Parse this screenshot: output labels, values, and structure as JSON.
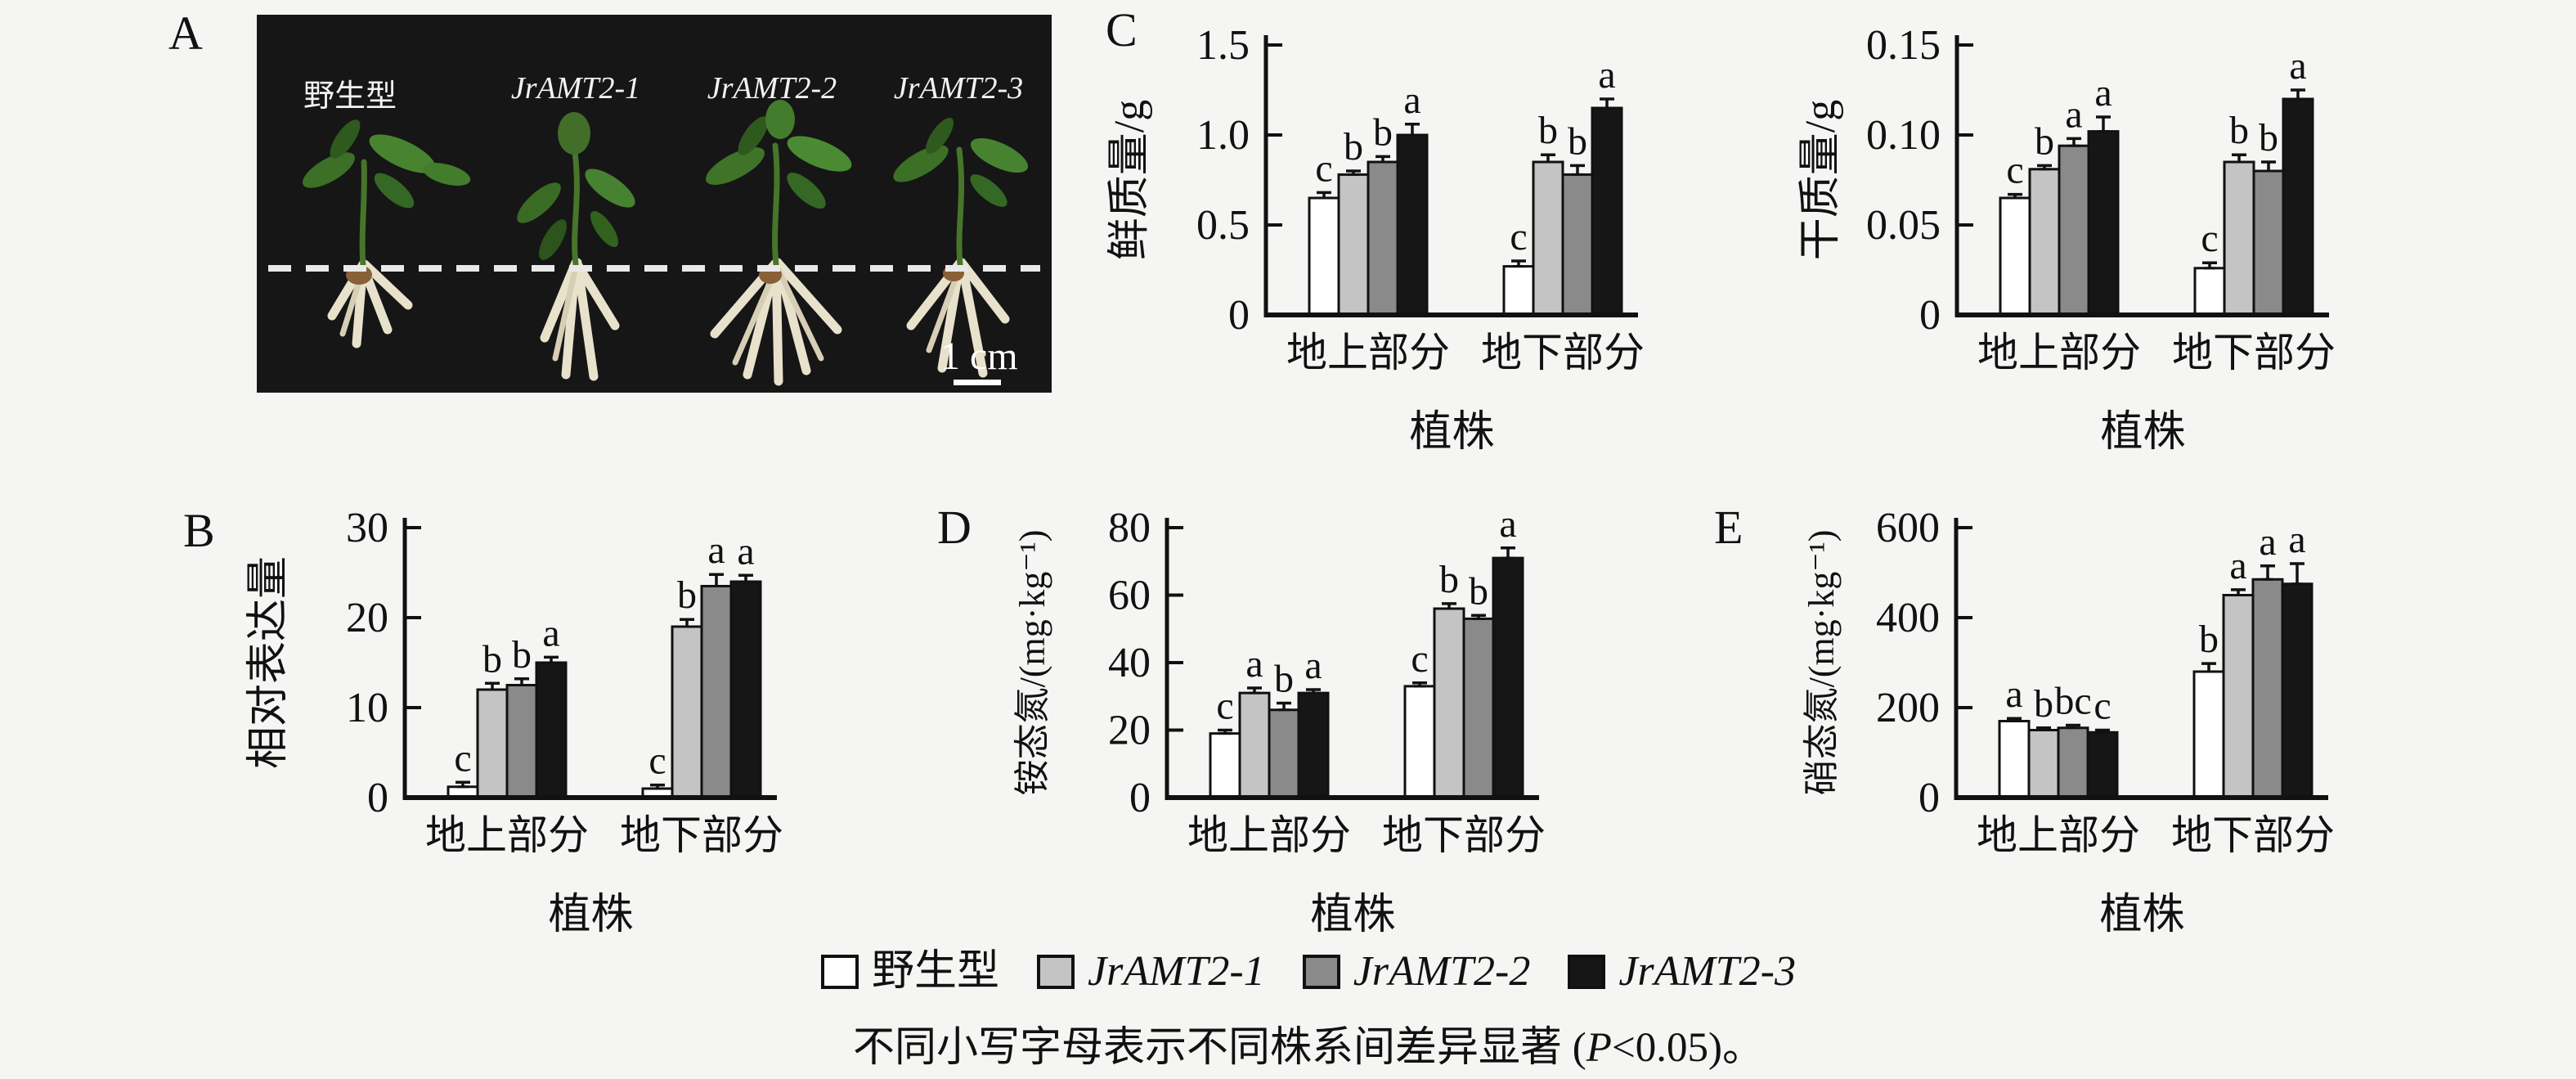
{
  "figure": {
    "background": "#f5f5f4",
    "panel_labels": {
      "a": "A",
      "b": "B",
      "c": "C",
      "d": "D",
      "e": "E"
    }
  },
  "panel_a": {
    "plant_labels": [
      {
        "text": "野生型",
        "italic": false
      },
      {
        "text": "JrAMT2-1",
        "italic": true
      },
      {
        "text": "JrAMT2-2",
        "italic": true
      },
      {
        "text": "JrAMT2-3",
        "italic": true
      }
    ],
    "scale_bar_label": "1 cm"
  },
  "series_colors": [
    "#ffffff",
    "#c4c4c4",
    "#8a8a8a",
    "#161616"
  ],
  "legend": {
    "items": [
      {
        "label": "野生型",
        "italic": false
      },
      {
        "label": "JrAMT2-1",
        "italic": true
      },
      {
        "label": "JrAMT2-2",
        "italic": true
      },
      {
        "label": "JrAMT2-3",
        "italic": true
      }
    ]
  },
  "footnote": {
    "prefix": "不同小写字母表示不同株系间差异显著 (",
    "italic_part": "P",
    "suffix": "<0.05)。"
  },
  "chart_data": [
    {
      "panel": "B",
      "type": "bar",
      "title": "",
      "ylabel": "相对表达量",
      "xlabel": "植株",
      "categories": [
        "地上部分",
        "地下部分"
      ],
      "ylim": [
        0,
        30
      ],
      "yticks": [
        0,
        10,
        20,
        30
      ],
      "ytick_labels": [
        "0",
        "10",
        "20",
        "30"
      ],
      "grid": false,
      "legend_position": "shared-bottom",
      "series": [
        {
          "name": "野生型",
          "values": [
            1.2,
            1.0
          ],
          "errors": [
            0.5,
            0.4
          ],
          "letters": [
            "c",
            "c"
          ]
        },
        {
          "name": "JrAMT2-1",
          "values": [
            12.0,
            19.0
          ],
          "errors": [
            0.7,
            0.8
          ],
          "letters": [
            "b",
            "b"
          ]
        },
        {
          "name": "JrAMT2-2",
          "values": [
            12.5,
            23.5
          ],
          "errors": [
            0.7,
            1.3
          ],
          "letters": [
            "b",
            "a"
          ]
        },
        {
          "name": "JrAMT2-3",
          "values": [
            15.0,
            24.0
          ],
          "errors": [
            0.6,
            0.7
          ],
          "letters": [
            "a",
            "a"
          ]
        }
      ]
    },
    {
      "panel": "C",
      "type": "bar",
      "title": "",
      "ylabel": "鲜质量/g",
      "xlabel": "植株",
      "categories": [
        "地上部分",
        "地下部分"
      ],
      "ylim": [
        0,
        1.5
      ],
      "yticks": [
        0,
        0.5,
        1.0,
        1.5
      ],
      "ytick_labels": [
        "0",
        "0.5",
        "1.0",
        "1.5"
      ],
      "grid": false,
      "legend_position": "shared-bottom",
      "series": [
        {
          "name": "野生型",
          "values": [
            0.65,
            0.27
          ],
          "errors": [
            0.03,
            0.03
          ],
          "letters": [
            "c",
            "c"
          ]
        },
        {
          "name": "JrAMT2-1",
          "values": [
            0.78,
            0.85
          ],
          "errors": [
            0.02,
            0.04
          ],
          "letters": [
            "b",
            "b"
          ]
        },
        {
          "name": "JrAMT2-2",
          "values": [
            0.85,
            0.78
          ],
          "errors": [
            0.03,
            0.05
          ],
          "letters": [
            "b",
            "b"
          ]
        },
        {
          "name": "JrAMT2-3",
          "values": [
            1.0,
            1.15
          ],
          "errors": [
            0.06,
            0.05
          ],
          "letters": [
            "a",
            "a"
          ]
        }
      ]
    },
    {
      "panel": "C",
      "type": "bar",
      "title": "",
      "ylabel": "干质量/g",
      "xlabel": "植株",
      "categories": [
        "地上部分",
        "地下部分"
      ],
      "ylim": [
        0,
        0.15
      ],
      "yticks": [
        0,
        0.05,
        0.1,
        0.15
      ],
      "ytick_labels": [
        "0",
        "0.05",
        "0.10",
        "0.15"
      ],
      "grid": false,
      "legend_position": "shared-bottom",
      "series": [
        {
          "name": "野生型",
          "values": [
            0.065,
            0.026
          ],
          "errors": [
            0.002,
            0.003
          ],
          "letters": [
            "c",
            "c"
          ]
        },
        {
          "name": "JrAMT2-1",
          "values": [
            0.081,
            0.085
          ],
          "errors": [
            0.002,
            0.004
          ],
          "letters": [
            "b",
            "b"
          ]
        },
        {
          "name": "JrAMT2-2",
          "values": [
            0.094,
            0.08
          ],
          "errors": [
            0.004,
            0.005
          ],
          "letters": [
            "a",
            "b"
          ]
        },
        {
          "name": "JrAMT2-3",
          "values": [
            0.102,
            0.12
          ],
          "errors": [
            0.008,
            0.005
          ],
          "letters": [
            "a",
            "a"
          ]
        }
      ]
    },
    {
      "panel": "D",
      "type": "bar",
      "title": "",
      "ylabel": "铵态氮/(mg·kg⁻¹)",
      "xlabel": "植株",
      "categories": [
        "地上部分",
        "地下部分"
      ],
      "ylim": [
        0,
        80
      ],
      "yticks": [
        0,
        20,
        40,
        60,
        80
      ],
      "ytick_labels": [
        "0",
        "20",
        "40",
        "60",
        "80"
      ],
      "grid": false,
      "legend_position": "shared-bottom",
      "series": [
        {
          "name": "野生型",
          "values": [
            19,
            33
          ],
          "errors": [
            1.0,
            1.0
          ],
          "letters": [
            "c",
            "c"
          ]
        },
        {
          "name": "JrAMT2-1",
          "values": [
            31,
            56
          ],
          "errors": [
            1.5,
            1.5
          ],
          "letters": [
            "a",
            "b"
          ]
        },
        {
          "name": "JrAMT2-2",
          "values": [
            26,
            53
          ],
          "errors": [
            2.0,
            1.0
          ],
          "letters": [
            "b",
            "b"
          ]
        },
        {
          "name": "JrAMT2-3",
          "values": [
            31,
            71
          ],
          "errors": [
            1.0,
            3.0
          ],
          "letters": [
            "a",
            "a"
          ]
        }
      ]
    },
    {
      "panel": "E",
      "type": "bar",
      "title": "",
      "ylabel": "硝态氮/(mg·kg⁻¹)",
      "xlabel": "植株",
      "categories": [
        "地上部分",
        "地下部分"
      ],
      "ylim": [
        0,
        600
      ],
      "yticks": [
        0,
        200,
        400,
        600
      ],
      "ytick_labels": [
        "0",
        "200",
        "400",
        "600"
      ],
      "grid": false,
      "legend_position": "shared-bottom",
      "series": [
        {
          "name": "野生型",
          "values": [
            170,
            280
          ],
          "errors": [
            6,
            18
          ],
          "letters": [
            "a",
            "b"
          ]
        },
        {
          "name": "JrAMT2-1",
          "values": [
            150,
            450
          ],
          "errors": [
            5,
            12
          ],
          "letters": [
            "b",
            "a"
          ]
        },
        {
          "name": "JrAMT2-2",
          "values": [
            155,
            485
          ],
          "errors": [
            6,
            30
          ],
          "letters": [
            "bc",
            "a"
          ]
        },
        {
          "name": "JrAMT2-3",
          "values": [
            145,
            475
          ],
          "errors": [
            5,
            45
          ],
          "letters": [
            "c",
            "a"
          ]
        }
      ]
    }
  ]
}
